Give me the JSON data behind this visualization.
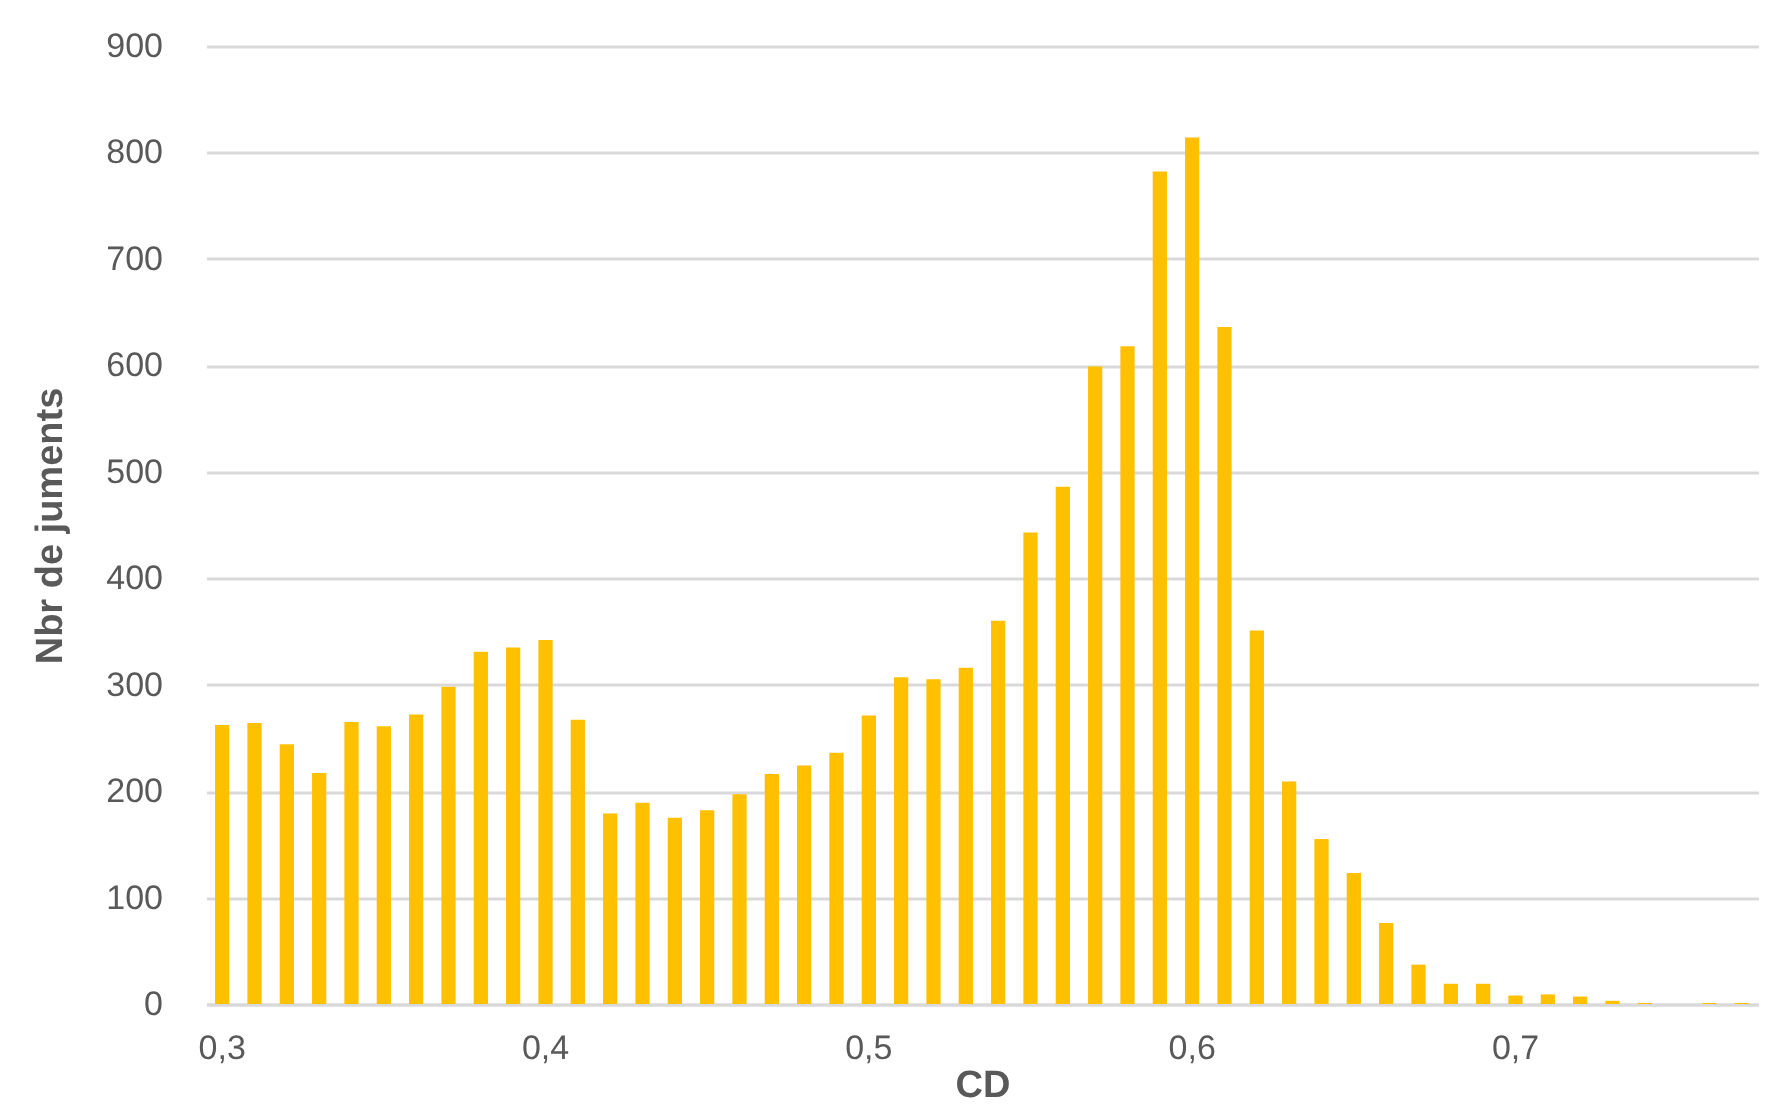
{
  "chart_data": {
    "type": "bar",
    "xlabel": "CD",
    "ylabel": "Nbr de juments",
    "categories": [
      "0,3",
      null,
      null,
      null,
      null,
      null,
      null,
      null,
      null,
      null,
      "0,4",
      null,
      null,
      null,
      null,
      null,
      null,
      null,
      null,
      null,
      "0,5",
      null,
      null,
      null,
      null,
      null,
      null,
      null,
      null,
      null,
      "0,6",
      null,
      null,
      null,
      null,
      null,
      null,
      null,
      null,
      null,
      "0,7",
      null,
      null,
      null,
      null,
      null,
      null,
      null
    ],
    "values": [
      262,
      264,
      244,
      217,
      265,
      261,
      272,
      298,
      331,
      335,
      342,
      267,
      179,
      189,
      175,
      182,
      197,
      216,
      224,
      236,
      271,
      307,
      305,
      316,
      360,
      443,
      486,
      599,
      618,
      782,
      814,
      636,
      351,
      209,
      155,
      123,
      76,
      37,
      19,
      19,
      8,
      9,
      7,
      3,
      1,
      0,
      1,
      1
    ],
    "color": "#ffc000",
    "ylim": [
      0,
      900
    ],
    "yticks": [
      0,
      100,
      200,
      300,
      400,
      500,
      600,
      700,
      800,
      900
    ],
    "grid": "y"
  }
}
